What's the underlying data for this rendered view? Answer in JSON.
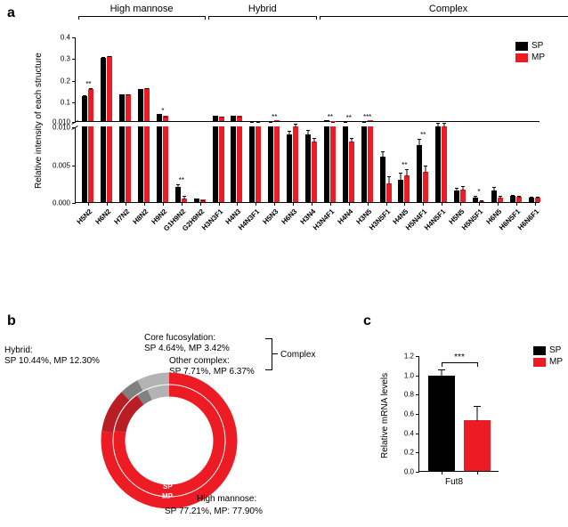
{
  "panels": {
    "a": "a",
    "b": "b",
    "c": "c"
  },
  "colors": {
    "sp": "#000000",
    "mp": "#ed1c24",
    "hybrid": "#b81e24",
    "core_fuc": "#808080",
    "other_complex": "#b3b3b3",
    "high_mannose": "#ed1c24",
    "bg": "#ffffff"
  },
  "legend": {
    "sp": "SP",
    "mp": "MP"
  },
  "chart_a": {
    "ylabel": "Relative intensity of each structure",
    "categories": [
      "High mannose",
      "Hybrid",
      "Complex"
    ],
    "cat_ranges": [
      [
        0,
        6
      ],
      [
        7,
        12
      ],
      [
        13,
        26
      ]
    ],
    "upper": {
      "ylim": [
        0.01,
        0.4
      ],
      "yticks": [
        0.01,
        0.1,
        0.2,
        0.3,
        0.4
      ]
    },
    "lower": {
      "ylim": [
        0.0,
        0.01
      ],
      "yticks": [
        0.0,
        0.005,
        0.01
      ]
    },
    "structures": [
      "H5N2",
      "H6N2",
      "H7N2",
      "H8N2",
      "H9N2",
      "G1H9N2",
      "G2H9N2",
      "H3N3F1",
      "H4N3",
      "H4N3F1",
      "H5N3",
      "H6N3",
      "H3N4",
      "H3N4F1",
      "H4N4",
      "H3N5",
      "H3N5F1",
      "H4N5",
      "H5N4F1",
      "H4N5F1",
      "H5N5",
      "H5N5F1",
      "H6N5",
      "H6N5F1",
      "H6N6F1"
    ],
    "sp": [
      0.127,
      0.303,
      0.135,
      0.157,
      0.041,
      0.002,
      0.0005,
      0.034,
      0.033,
      0.0105,
      0.011,
      0.009,
      0.009,
      0.013,
      0.0106,
      0.011,
      0.006,
      0.003,
      0.0075,
      0.01,
      0.0015,
      0.0006,
      0.0015,
      0.0008,
      0.0006
    ],
    "mp": [
      0.157,
      0.308,
      0.133,
      0.16,
      0.033,
      0.0005,
      0.0003,
      0.032,
      0.034,
      0.0103,
      0.014,
      0.01,
      0.008,
      0.011,
      0.008,
      0.014,
      0.0025,
      0.0035,
      0.004,
      0.01,
      0.0017,
      0.0001,
      0.0006,
      0.0007,
      0.0006
    ],
    "err_sp": [
      0.005,
      0.007,
      0.003,
      0.004,
      0.001,
      0.0005,
      0.0001,
      0.001,
      0.001,
      0.0005,
      0.001,
      0.0005,
      0.0006,
      0.001,
      0.0006,
      0.001,
      0.0008,
      0.001,
      0.001,
      0.0006,
      0.0005,
      0.0004,
      0.0006,
      0.0003,
      0.0002
    ],
    "err_mp": [
      0.008,
      0.006,
      0.003,
      0.004,
      0.001,
      0.0005,
      0.0001,
      0.001,
      0.001,
      0.0005,
      0.001,
      0.0005,
      0.0006,
      0.001,
      0.0006,
      0.001,
      0.001,
      0.001,
      0.001,
      0.0006,
      0.0005,
      0.0003,
      0.0004,
      0.0002,
      0.0002
    ],
    "sig": [
      "**",
      "",
      "",
      "",
      "*",
      "**",
      "",
      "",
      "",
      "",
      "**",
      "",
      "",
      "**",
      "**",
      "***",
      "",
      "**",
      "**",
      "",
      "",
      "*",
      "",
      "",
      ""
    ]
  },
  "chart_b": {
    "labels": {
      "hybrid": "Hybrid:",
      "hybrid_v": "SP 10.44%, MP 12.30%",
      "core": "Core fucosylation:",
      "core_v": "SP 4.64%, MP 3.42%",
      "other": "Other complex:",
      "other_v": "SP 7.71%, MP 6.37%",
      "hm": "High mannose:",
      "hm_v": "SP 77.21%, MP: 77.90%",
      "complex": "Complex",
      "sp_ring": "SP",
      "mp_ring": "MP"
    },
    "sp_pct": {
      "hybrid": 10.44,
      "core": 4.64,
      "other": 7.71,
      "hm": 77.21
    },
    "mp_pct": {
      "hybrid": 12.3,
      "core": 3.42,
      "other": 6.37,
      "hm": 77.9
    }
  },
  "chart_c": {
    "ylabel": "Relative mRNA levels",
    "xlabel": "Fut8",
    "ylim": [
      0.0,
      1.2
    ],
    "ytick_step": 0.2,
    "yticks": [
      0.0,
      0.2,
      0.4,
      0.6,
      0.8,
      1.0,
      1.2
    ],
    "sp": 0.99,
    "mp": 0.53,
    "err_sp": 0.07,
    "err_mp": 0.15,
    "sig": "***"
  }
}
